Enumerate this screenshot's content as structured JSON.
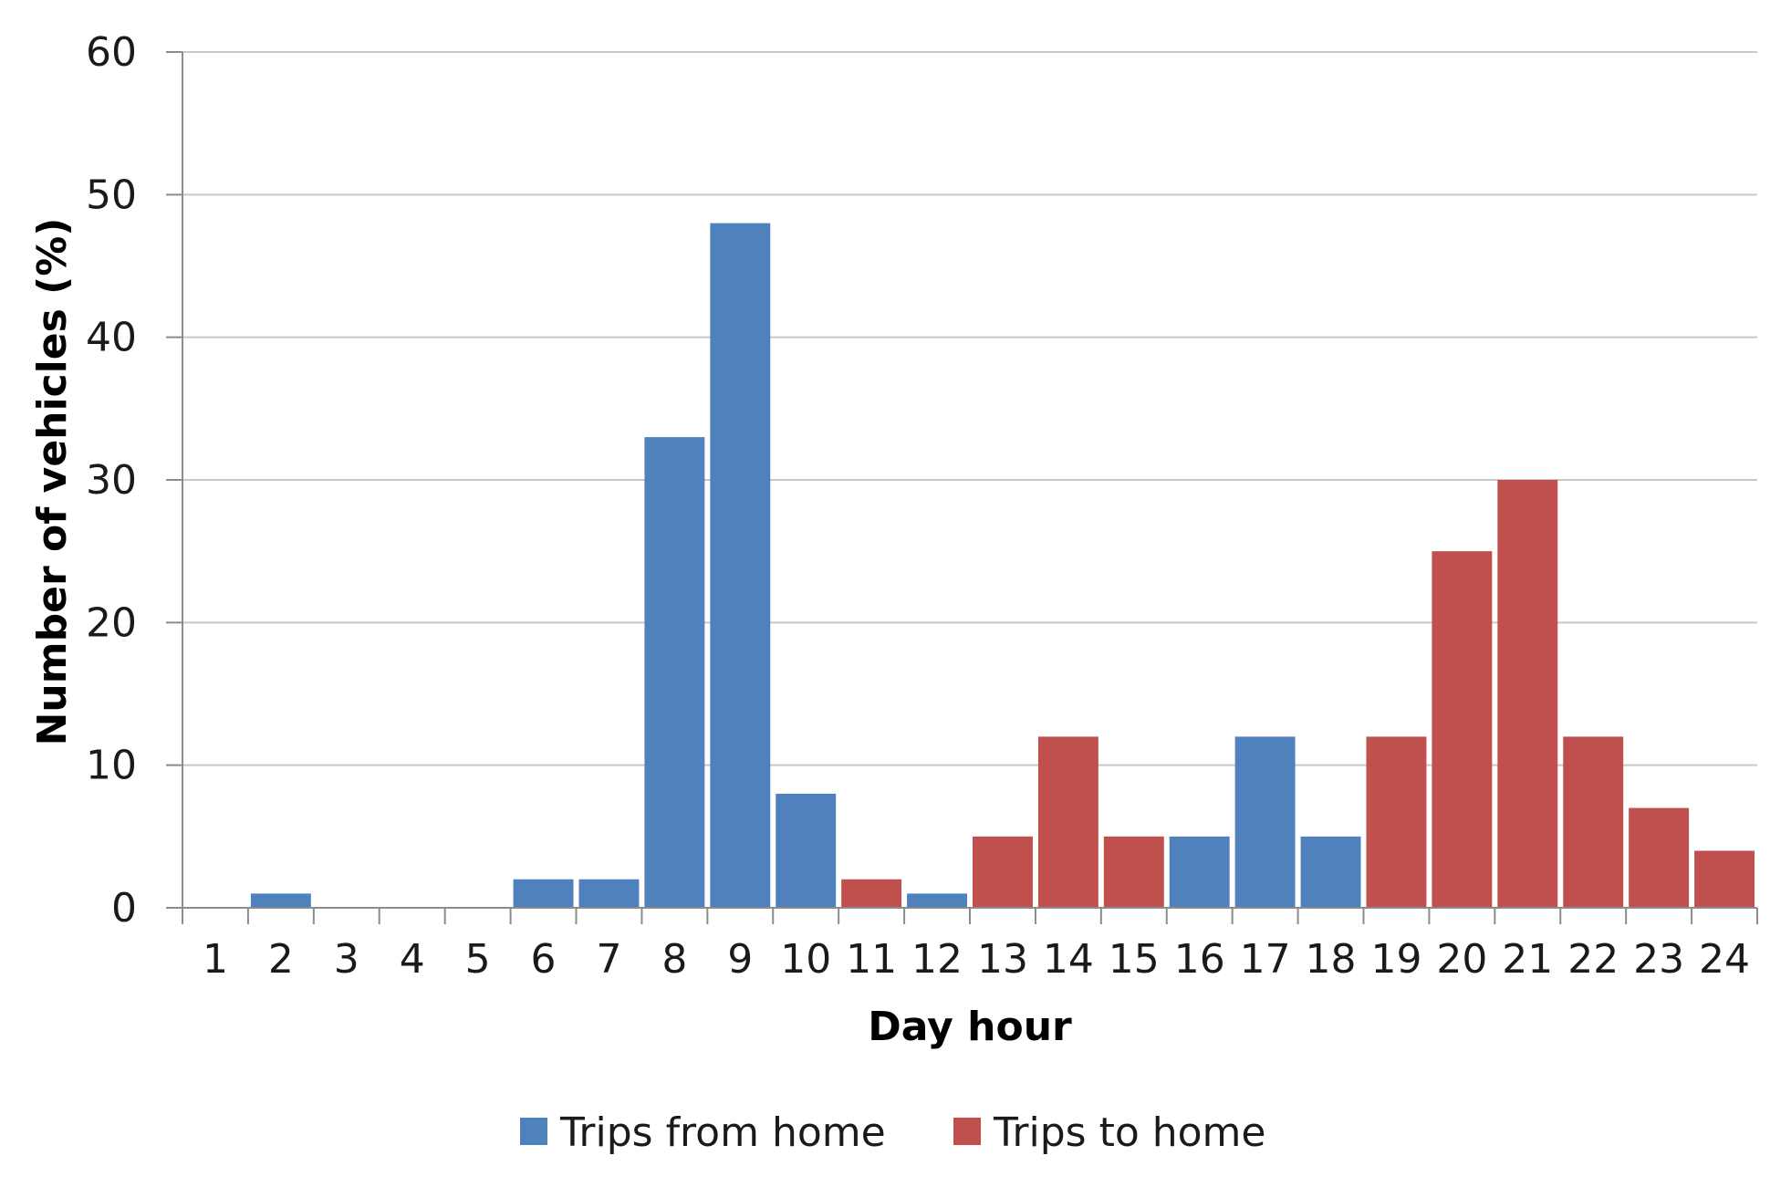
{
  "chart_data": {
    "type": "bar",
    "title": "",
    "xlabel": "Day hour",
    "ylabel": "Number of vehicles (%)",
    "ylim": [
      0,
      60
    ],
    "yticks": [
      0,
      10,
      20,
      30,
      40,
      50,
      60
    ],
    "grid": true,
    "legend_position": "bottom",
    "categories": [
      "1",
      "2",
      "3",
      "4",
      "5",
      "6",
      "7",
      "8",
      "9",
      "10",
      "11",
      "12",
      "13",
      "14",
      "15",
      "16",
      "17",
      "18",
      "19",
      "20",
      "21",
      "22",
      "23",
      "24"
    ],
    "series": [
      {
        "name": "Trips from home",
        "color": "#4f81bd",
        "values": [
          0,
          1,
          0,
          0,
          0,
          2,
          2,
          33,
          48,
          8,
          null,
          1,
          null,
          null,
          null,
          5,
          12,
          5,
          null,
          null,
          null,
          null,
          null,
          null
        ]
      },
      {
        "name": "Trips to home",
        "color": "#c0504d",
        "values": [
          null,
          null,
          null,
          null,
          null,
          null,
          null,
          null,
          null,
          null,
          2,
          null,
          5,
          12,
          5,
          null,
          null,
          null,
          12,
          25,
          30,
          12,
          7,
          4
        ]
      }
    ]
  }
}
